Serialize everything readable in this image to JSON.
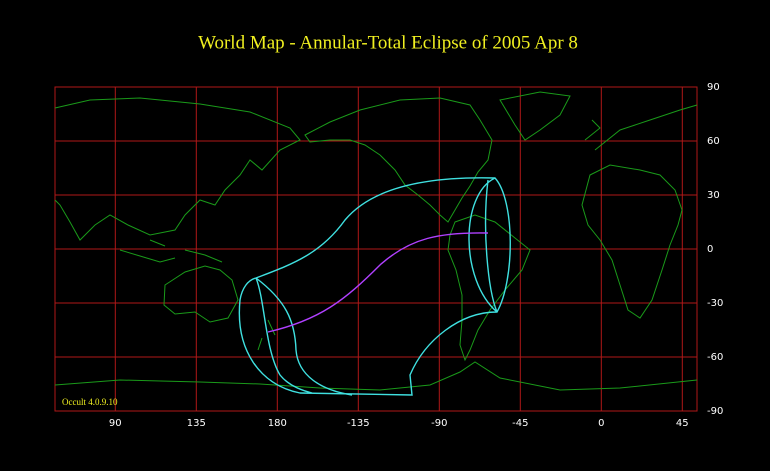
{
  "title": "World Map  -  Annular-Total Eclipse of 2005 Apr  8",
  "longitude_ticks": [
    90,
    135,
    180,
    -135,
    -90,
    -45,
    0,
    45
  ],
  "latitude_ticks": [
    90,
    60,
    30,
    0,
    -30,
    -60,
    -90
  ],
  "footer": "Occult 4.0.9.10"
}
